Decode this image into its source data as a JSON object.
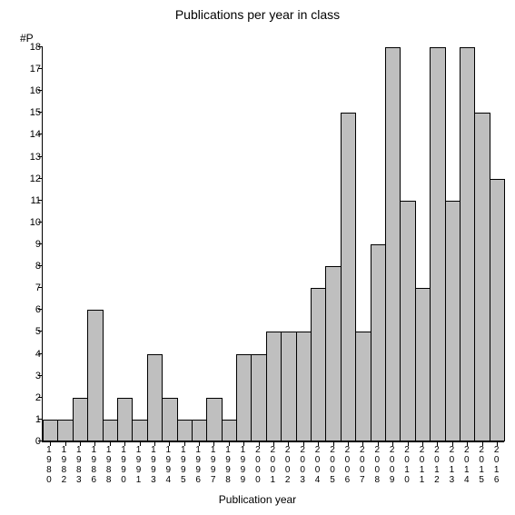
{
  "chart": {
    "type": "bar",
    "title": "Publications per year in class",
    "title_fontsize": 14,
    "ylabel": "#P",
    "ylabel_fontsize": 12,
    "xlabel": "Publication year",
    "xlabel_fontsize": 12,
    "tick_fontsize": 11,
    "xtick_fontsize": 10,
    "background_color": "#ffffff",
    "bar_color": "#bfbfbf",
    "border_color": "#000000",
    "text_color": "#000000",
    "ylim": [
      0,
      18
    ],
    "ytick_step": 1,
    "yticks": [
      0,
      1,
      2,
      3,
      4,
      5,
      6,
      7,
      8,
      9,
      10,
      11,
      12,
      13,
      14,
      15,
      16,
      17,
      18
    ],
    "categories": [
      "1980",
      "1982",
      "1983",
      "1986",
      "1988",
      "1990",
      "1991",
      "1993",
      "1994",
      "1995",
      "1996",
      "1997",
      "1998",
      "1999",
      "2000",
      "2001",
      "2002",
      "2003",
      "2004",
      "2005",
      "2006",
      "2007",
      "2008",
      "2009",
      "2010",
      "2011",
      "2012",
      "2013",
      "2014",
      "2015",
      "2016"
    ],
    "xtick_indices_shown": [
      0,
      1,
      2,
      3,
      4,
      5,
      6,
      7,
      8,
      9,
      10,
      11,
      12,
      13,
      14,
      15,
      16,
      17,
      18,
      19,
      20,
      21,
      22,
      23,
      24,
      25,
      26,
      27,
      28,
      29,
      30
    ],
    "values": [
      1,
      1,
      2,
      6,
      1,
      2,
      1,
      4,
      2,
      1,
      1,
      2,
      1,
      4,
      4,
      5,
      5,
      5,
      7,
      8,
      15,
      5,
      9,
      18,
      11,
      7,
      18,
      11,
      18,
      15,
      12
    ]
  }
}
